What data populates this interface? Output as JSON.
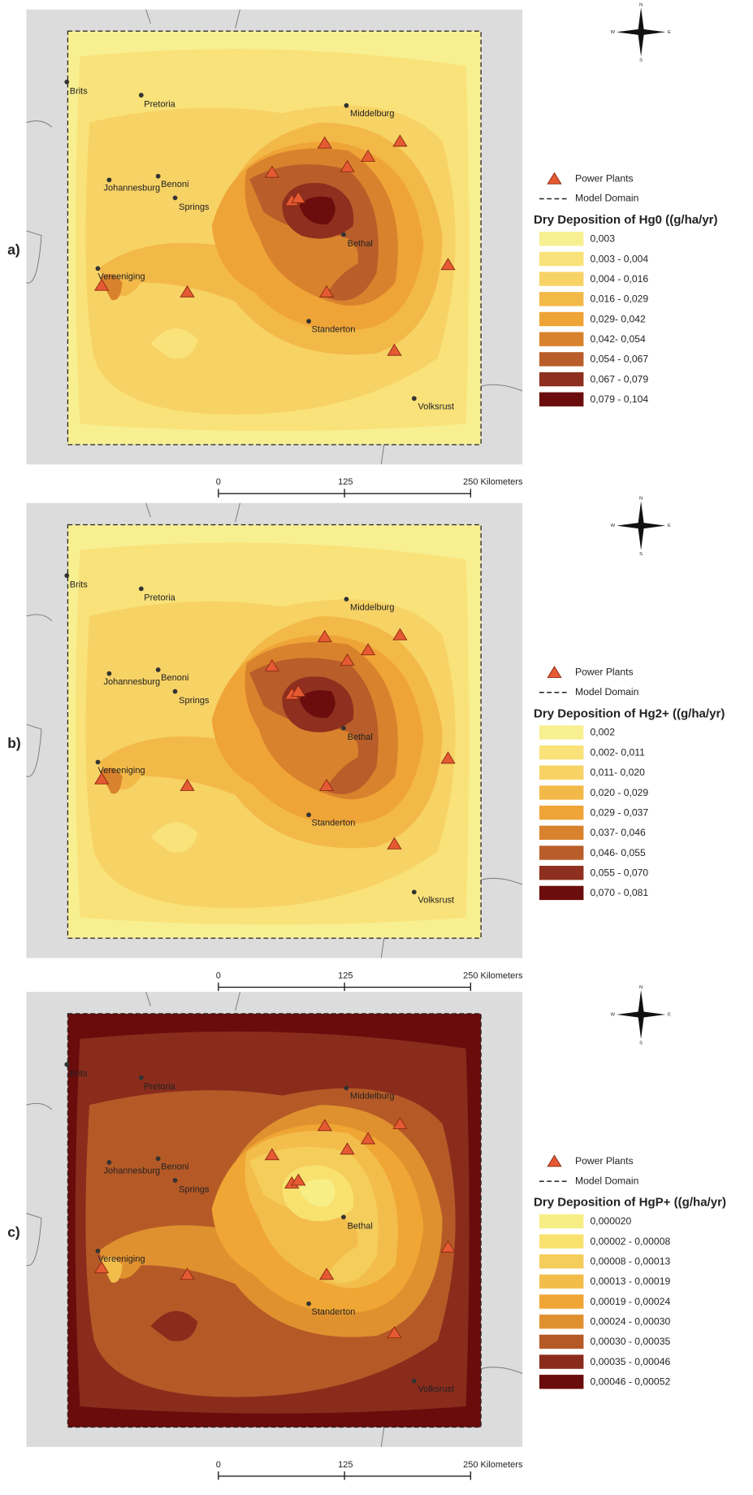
{
  "panels": [
    {
      "label": "a)",
      "legend": {
        "power_plants": "Power Plants",
        "model_domain": "Model Domain",
        "title": "Dry Deposition of Hg0 ((g/ha/yr)",
        "items": [
          {
            "label": "0,003",
            "color": "#f8ef91"
          },
          {
            "label": "0,003 - 0,004",
            "color": "#f9e27a"
          },
          {
            "label": "0,004 - 0,016",
            "color": "#f7d265"
          },
          {
            "label": "0,016 - 0,029",
            "color": "#f3b948"
          },
          {
            "label": "0,029- 0,042",
            "color": "#efa437"
          },
          {
            "label": "0,042- 0,054",
            "color": "#d9822d"
          },
          {
            "label": "0,054 - 0,067",
            "color": "#b95e2a"
          },
          {
            "label": "0,067 - 0,079",
            "color": "#8e2f1f"
          },
          {
            "label": "0,079 - 0,104",
            "color": "#6b0d0c"
          }
        ]
      }
    },
    {
      "label": "b)",
      "legend": {
        "power_plants": "Power Plants",
        "model_domain": "Model Domain",
        "title": "Dry Deposition of Hg2+ ((g/ha/yr)",
        "items": [
          {
            "label": "0,002",
            "color": "#f8ef91"
          },
          {
            "label": "0,002- 0,011",
            "color": "#f9e27a"
          },
          {
            "label": "0,011- 0,020",
            "color": "#f7d265"
          },
          {
            "label": "0,020 - 0,029",
            "color": "#f3b948"
          },
          {
            "label": "0,029 - 0,037",
            "color": "#efa437"
          },
          {
            "label": "0,037- 0,046",
            "color": "#d9822d"
          },
          {
            "label": "0,046- 0,055",
            "color": "#b95e2a"
          },
          {
            "label": "0,055 - 0,070",
            "color": "#8e2f1f"
          },
          {
            "label": "0,070 - 0,081",
            "color": "#6b0d0c"
          }
        ]
      }
    },
    {
      "label": "c)",
      "legend": {
        "power_plants": "Power Plants",
        "model_domain": "Model Domain",
        "title": "Dry Deposition of HgP+ ((g/ha/yr)",
        "items": [
          {
            "label": "0,000020",
            "color": "#f7ee85"
          },
          {
            "label": "0,00002 - 0,00008",
            "color": "#f8e16f"
          },
          {
            "label": "0,00008 - 0,00013",
            "color": "#f5cd5b"
          },
          {
            "label": "0,00013 - 0,00019",
            "color": "#f3bd4c"
          },
          {
            "label": "0,00019 - 0,00024",
            "color": "#f0a634"
          },
          {
            "label": "0,00024 - 0,00030",
            "color": "#e0912f"
          },
          {
            "label": "0,00030 - 0,00035",
            "color": "#b55a27"
          },
          {
            "label": "0,00035 - 0,00046",
            "color": "#8a2c1c"
          },
          {
            "label": "0,00046 - 0,00052",
            "color": "#6a0c0c"
          }
        ]
      }
    }
  ],
  "cities": [
    "Brits",
    "Pretoria",
    "Middelburg",
    "Johannesburg",
    "Benoni",
    "Springs",
    "Bethal",
    "Vereeniging",
    "Standerton",
    "Volksrust"
  ],
  "compass": {
    "north": "N",
    "south": "S",
    "east": "E",
    "west": "W"
  },
  "scale_bar": {
    "labels": [
      "0",
      "125",
      "250 Kilometers"
    ]
  }
}
